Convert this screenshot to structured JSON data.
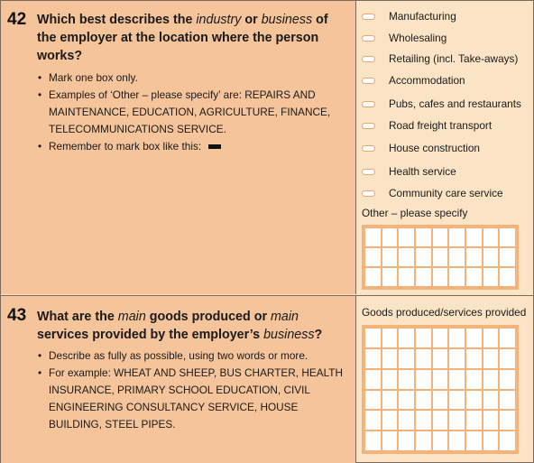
{
  "q42": {
    "number": "42",
    "text_parts": [
      {
        "t": "Which best describes the ",
        "i": false
      },
      {
        "t": "industry",
        "i": true
      },
      {
        "t": " or ",
        "i": false
      },
      {
        "t": "business",
        "i": true
      },
      {
        "t": " of the employer at the location where the person works?",
        "i": false
      }
    ],
    "notes": [
      "Mark one box only.",
      "Examples of ‘Other – please specify’ are: REPAIRS AND MAINTENANCE, EDUCATION, AGRICULTURE, FINANCE, TELECOMMUNICATIONS SERVICE.",
      "Remember to mark box like this:"
    ],
    "options": [
      "Manufacturing",
      "Wholesaling",
      "Retailing (incl. Take-aways)",
      "Accommodation",
      "Pubs, cafes and restaurants",
      "Road freight transport",
      "House construction",
      "Health service",
      "Community care service"
    ],
    "other_label": "Other – please specify"
  },
  "q43": {
    "number": "43",
    "text_parts": [
      {
        "t": "What are the ",
        "i": false
      },
      {
        "t": "main",
        "i": true
      },
      {
        "t": " goods produced or ",
        "i": false
      },
      {
        "t": "main",
        "i": true
      },
      {
        "t": " services provided by the employer’s ",
        "i": false
      },
      {
        "t": "business",
        "i": true
      },
      {
        "t": "?",
        "i": false
      }
    ],
    "notes": [
      "Describe as fully as possible, using two words or more.",
      "For example: WHEAT AND SHEEP, BUS CHARTER, HEALTH INSURANCE, PRIMARY SCHOOL EDUCATION, CIVIL ENGINEERING CONSULTANCY SERVICE, HOUSE BUILDING, STEEL PIPES."
    ],
    "answer_label": "Goods produced/services provided"
  },
  "colors": {
    "question_panel": "#f5c49a",
    "answer_panel": "#fbe3c6",
    "box_border": "#f5b27a"
  }
}
